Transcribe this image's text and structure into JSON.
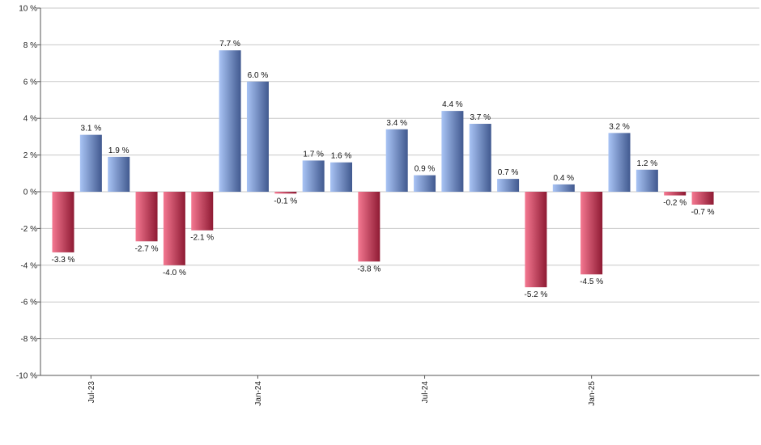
{
  "chart_data": {
    "type": "bar",
    "categories": [
      "Jun-23",
      "Jul-23",
      "Aug-23",
      "Sep-23",
      "Oct-23",
      "Nov-23",
      "Dec-23",
      "Jan-24",
      "Feb-24",
      "Mar-24",
      "Apr-24",
      "May-24",
      "Jun-24",
      "Jul-24",
      "Aug-24",
      "Sep-24",
      "Oct-24",
      "Nov-24",
      "Dec-24",
      "Jan-25",
      "Feb-25",
      "Mar-25",
      "Apr-25",
      "May-25"
    ],
    "values": [
      -3.3,
      3.1,
      1.9,
      -2.7,
      -4.0,
      -2.1,
      7.7,
      6.0,
      -0.1,
      1.7,
      1.6,
      -3.8,
      3.4,
      0.9,
      4.4,
      3.7,
      0.7,
      -5.2,
      0.4,
      -4.5,
      3.2,
      1.2,
      -0.2,
      -0.7
    ],
    "data_labels": [
      "-3.3 %",
      "3.1 %",
      "1.9 %",
      "-2.7 %",
      "-4.0 %",
      "-2.1 %",
      "7.7 %",
      "6.0 %",
      "-0.1 %",
      "1.7 %",
      "1.6 %",
      "-3.8 %",
      "3.4 %",
      "0.9 %",
      "4.4 %",
      "3.7 %",
      "0.7 %",
      "-5.2 %",
      "0.4 %",
      "-4.5 %",
      "3.2 %",
      "1.2 %",
      "-0.2 %",
      "-0.7 %"
    ],
    "x_tick_labels": [
      {
        "category": "Jul-23",
        "label": "Jul-23"
      },
      {
        "category": "Jan-24",
        "label": "Jan-24"
      },
      {
        "category": "Jul-24",
        "label": "Jul-24"
      },
      {
        "category": "Jan-25",
        "label": "Jan-25"
      }
    ],
    "y_ticks": [
      -10,
      -8,
      -6,
      -4,
      -2,
      0,
      2,
      4,
      6,
      8,
      10
    ],
    "y_tick_labels": [
      "-10 %",
      "-8 %",
      "-6 %",
      "-4 %",
      "-2 %",
      "0 %",
      "2 %",
      "4 %",
      "6 %",
      "8 %",
      "10 %"
    ],
    "ylim": [
      -10,
      10
    ],
    "title": "",
    "xlabel": "",
    "ylabel": "",
    "grid": true,
    "colors": {
      "positive_light": "#a9c4f5",
      "positive_dark": "#41598f",
      "negative_light": "#f47891",
      "negative_dark": "#8e1a33",
      "grid": "#c8c8c8",
      "axis": "#555555"
    }
  }
}
